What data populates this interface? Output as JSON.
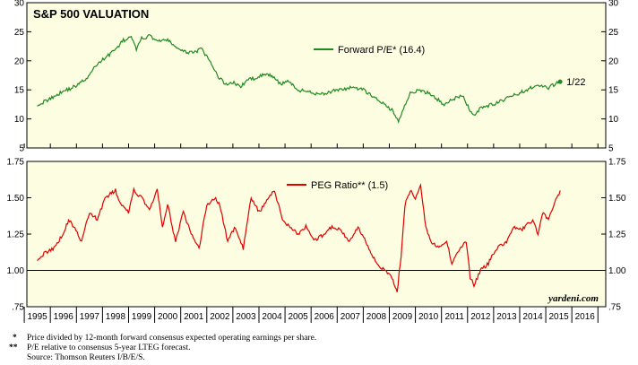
{
  "chart_data": [
    {
      "type": "line",
      "title": "S&P 500 VALUATION",
      "ylim": [
        5,
        30
      ],
      "yticks": [
        5,
        10,
        15,
        20,
        25,
        30
      ],
      "grid": false,
      "legend_placement": "top-center",
      "series": [
        {
          "name": "Forward P/E* (16.4)",
          "color": "#1f8a1f",
          "x": [
            1995.0,
            1995.3,
            1995.6,
            1996.0,
            1996.3,
            1996.6,
            1997.0,
            1997.3,
            1997.6,
            1998.0,
            1998.3,
            1998.6,
            1998.8,
            1999.0,
            1999.3,
            1999.6,
            2000.0,
            2000.3,
            2000.6,
            2001.0,
            2001.3,
            2001.6,
            2001.9,
            2002.2,
            2002.5,
            2002.8,
            2003.0,
            2003.3,
            2003.6,
            2004.0,
            2004.3,
            2004.6,
            2005.0,
            2005.5,
            2006.0,
            2006.5,
            2007.0,
            2007.5,
            2007.8,
            2008.0,
            2008.3,
            2008.6,
            2008.85,
            2009.0,
            2009.3,
            2009.6,
            2010.0,
            2010.3,
            2010.6,
            2011.0,
            2011.3,
            2011.6,
            2011.75,
            2012.0,
            2012.5,
            2013.0,
            2013.5,
            2014.0,
            2014.3,
            2014.6,
            2014.85,
            2015.05
          ],
          "values": [
            12.5,
            13.0,
            13.8,
            14.8,
            15.3,
            16.0,
            17.5,
            19.5,
            20.5,
            22.0,
            23.5,
            24.0,
            22.0,
            23.8,
            24.3,
            23.5,
            23.5,
            22.5,
            21.5,
            21.5,
            22.0,
            20.0,
            17.5,
            16.0,
            16.3,
            15.5,
            16.5,
            17.0,
            17.5,
            17.5,
            16.0,
            16.5,
            15.0,
            14.5,
            14.3,
            15.0,
            15.3,
            15.0,
            14.0,
            13.5,
            12.5,
            11.5,
            9.5,
            11.5,
            14.5,
            14.8,
            14.5,
            13.5,
            12.5,
            13.5,
            14.0,
            11.5,
            10.5,
            12.0,
            12.5,
            13.5,
            14.5,
            15.5,
            15.8,
            15.3,
            16.0,
            16.4
          ]
        }
      ],
      "annotations": [
        "1/22"
      ]
    },
    {
      "type": "line",
      "ylim": [
        0.75,
        1.75
      ],
      "yticks": [
        0.75,
        1.0,
        1.25,
        1.5,
        1.75
      ],
      "ytick_labels": [
        ".75",
        "1.00",
        "1.25",
        "1.50",
        "1.75"
      ],
      "reference_line": 1.0,
      "grid": false,
      "legend_placement": "top-center",
      "series": [
        {
          "name": "PEG Ratio** (1.5)",
          "color": "#e00000",
          "x": [
            1995.0,
            1995.3,
            1995.6,
            1996.0,
            1996.2,
            1996.4,
            1996.7,
            1997.0,
            1997.3,
            1997.6,
            1998.0,
            1998.2,
            1998.5,
            1998.7,
            1999.0,
            1999.3,
            1999.6,
            1999.8,
            2000.0,
            2000.3,
            2000.6,
            2000.9,
            2001.2,
            2001.5,
            2001.8,
            2002.0,
            2002.3,
            2002.6,
            2002.9,
            2003.2,
            2003.5,
            2003.8,
            2004.1,
            2004.4,
            2004.7,
            2005.0,
            2005.3,
            2005.6,
            2006.0,
            2006.3,
            2006.6,
            2007.0,
            2007.3,
            2007.6,
            2008.0,
            2008.3,
            2008.6,
            2008.8,
            2008.95,
            2009.1,
            2009.3,
            2009.5,
            2009.7,
            2009.9,
            2010.1,
            2010.4,
            2010.7,
            2010.9,
            2011.2,
            2011.45,
            2011.6,
            2011.75,
            2012.0,
            2012.3,
            2012.6,
            2013.0,
            2013.3,
            2013.6,
            2014.0,
            2014.2,
            2014.4,
            2014.6,
            2014.8,
            2015.05
          ],
          "values": [
            1.08,
            1.12,
            1.15,
            1.25,
            1.35,
            1.3,
            1.2,
            1.4,
            1.35,
            1.5,
            1.55,
            1.45,
            1.4,
            1.55,
            1.5,
            1.42,
            1.55,
            1.3,
            1.45,
            1.2,
            1.4,
            1.25,
            1.15,
            1.45,
            1.5,
            1.45,
            1.2,
            1.3,
            1.15,
            1.5,
            1.4,
            1.48,
            1.55,
            1.35,
            1.3,
            1.25,
            1.3,
            1.2,
            1.25,
            1.3,
            1.28,
            1.2,
            1.3,
            1.2,
            1.05,
            1.0,
            0.95,
            0.85,
            1.1,
            1.45,
            1.55,
            1.5,
            1.58,
            1.3,
            1.2,
            1.15,
            1.2,
            1.05,
            1.15,
            1.2,
            0.95,
            0.9,
            1.0,
            1.05,
            1.15,
            1.2,
            1.3,
            1.28,
            1.35,
            1.25,
            1.4,
            1.35,
            1.45,
            1.55
          ]
        }
      ]
    }
  ],
  "x_axis": {
    "type": "year",
    "range": [
      1994.6,
      2016.8
    ],
    "years": [
      "1995",
      "1996",
      "1997",
      "1998",
      "1999",
      "2000",
      "2001",
      "2002",
      "2003",
      "2004",
      "2005",
      "2006",
      "2007",
      "2008",
      "2009",
      "2010",
      "2011",
      "2012",
      "2013",
      "2014",
      "2015",
      "2016"
    ]
  },
  "colors": {
    "panel_background": "#fdfde2",
    "pe_line": "#1f8a1f",
    "peg_line": "#e00000"
  },
  "brand": "yardeni.com",
  "footnotes": [
    {
      "marker": "*",
      "text": "Price divided by 12-month forward consensus expected operating earnings per share."
    },
    {
      "marker": "**",
      "text": "P/E relative to consensus 5-year LTEG forecast."
    },
    {
      "marker": "",
      "text": "Source: Thomson Reuters I/B/E/S."
    }
  ]
}
